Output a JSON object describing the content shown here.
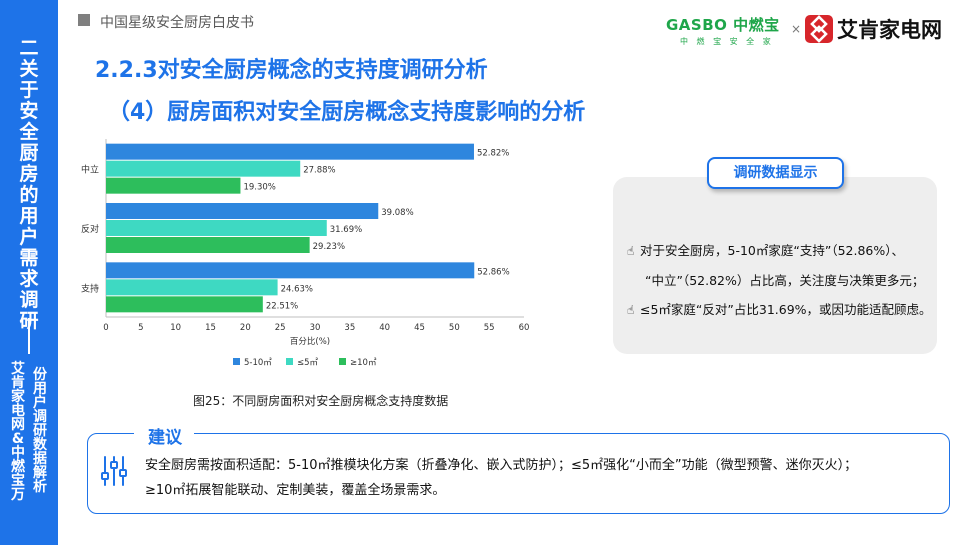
{
  "sidebar": {
    "title": "二 关于安全厨房的用户需求调研",
    "sub1": "艾肯家电网&中燃宝万",
    "sub2": "份用户调研数据解析"
  },
  "header": {
    "text": "中国星级安全厨房白皮书",
    "logo_gasbo": "GASBO 中燃宝",
    "logo_gasbo_sub": "中 燃 宝 安 全 家",
    "logo_x": "×",
    "logo_ak": "艾肯家电网"
  },
  "title1": "2.2.3对安全厨房概念的支持度调研分析",
  "title2": "（4）厨房面积对安全厨房概念支持度影响的分析",
  "caption": "图25：不同厨房面积对安全厨房概念支持度数据",
  "info": {
    "tab": "调研数据显示",
    "line1": "对于安全厨房，5-10㎡家庭“支持”（52.86%）、",
    "line2": "“中立”（52.82%）占比高，关注度与决策更多元；",
    "line3": "≤5㎡家庭“反对”占比31.69%，或因功能适配顾虑。"
  },
  "suggestion": {
    "label": "建议",
    "line1": "安全厨房需按面积适配：5-10㎡推模块化方案（折叠净化、嵌入式防护）；≤5㎡强化“小而全”功能（微型预警、迷你灭火）；",
    "line2": "≥10㎡拓展智能联动、定制美装，覆盖全场景需求。"
  },
  "colors": {
    "accent": "#1E73E8",
    "s1": "#2E86DE",
    "s2": "#3ED9C2",
    "s3": "#2DBE5C"
  },
  "chart_data": {
    "type": "bar",
    "orientation": "horizontal",
    "categories": [
      "中立",
      "反对",
      "支持"
    ],
    "series": [
      {
        "name": "5-10㎡",
        "values": [
          52.82,
          39.08,
          52.86
        ],
        "labels": [
          "52.82%",
          "39.08%",
          "52.86%"
        ]
      },
      {
        "name": "≤5㎡",
        "values": [
          27.88,
          31.69,
          24.63
        ],
        "labels": [
          "27.88%",
          "31.69%",
          "24.63%"
        ]
      },
      {
        "name": "≥10㎡",
        "values": [
          19.3,
          29.23,
          22.51
        ],
        "labels": [
          "19.30%",
          "29.23%",
          "22.51%"
        ]
      }
    ],
    "xlabel": "百分比(%)",
    "xlim": [
      0,
      60
    ],
    "xticks": [
      "0",
      "5",
      "10",
      "15",
      "20",
      "25",
      "30",
      "35",
      "40",
      "45",
      "50",
      "55",
      "60"
    ],
    "legend_position": "bottom",
    "grid": false
  }
}
